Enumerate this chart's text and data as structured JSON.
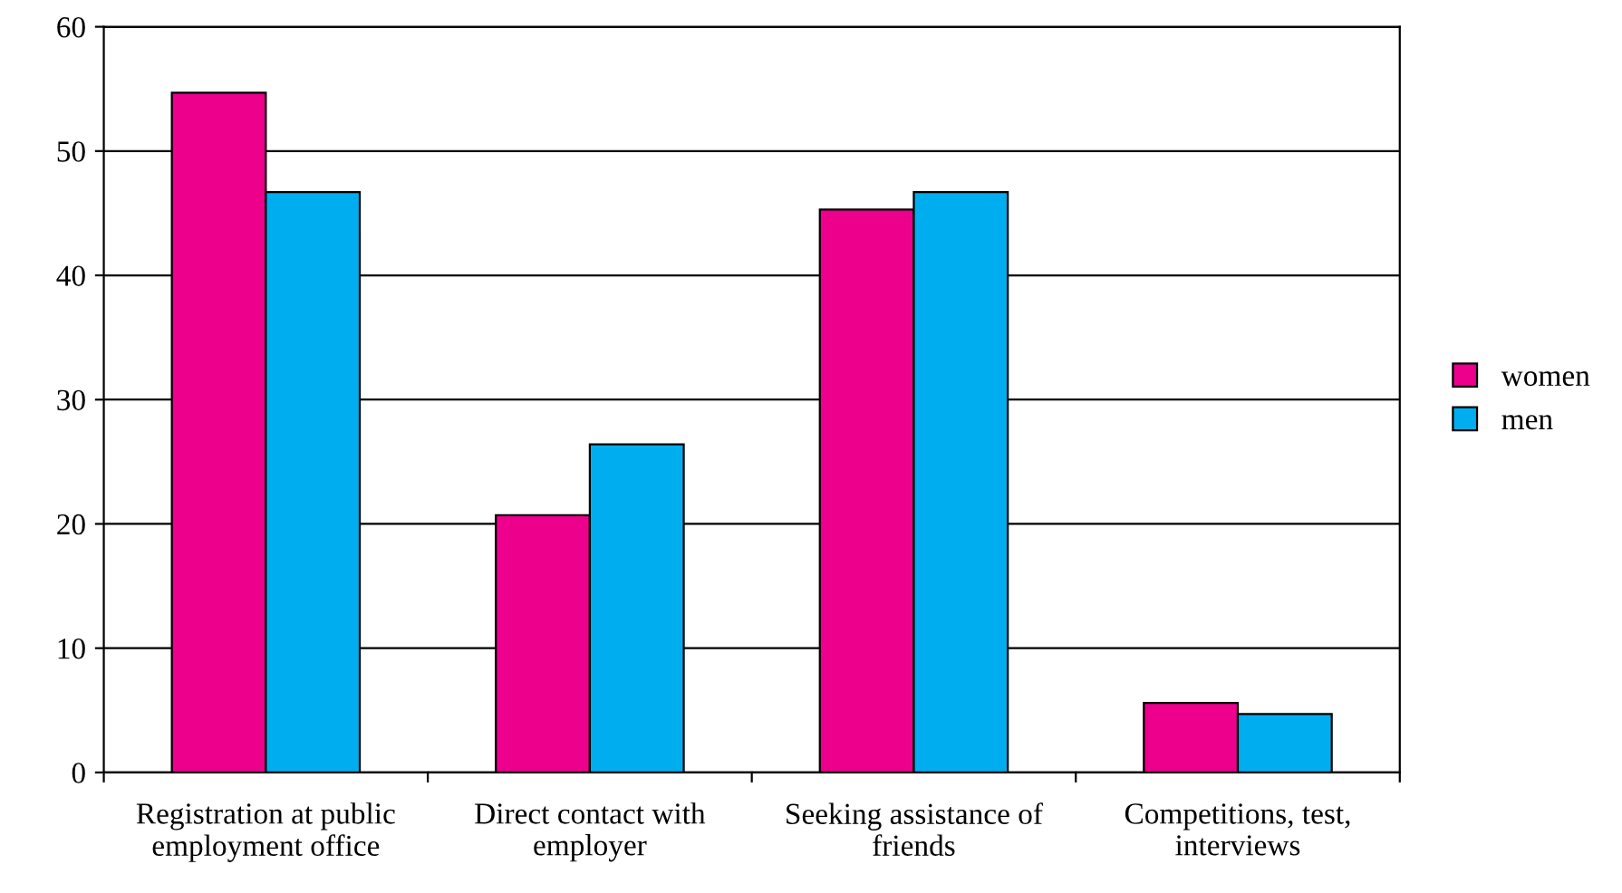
{
  "chart_data": {
    "type": "bar",
    "categories": [
      "Registration at public\nemployment office",
      "Direct contact with\nemployer",
      "Seeking assistance of\nfriends",
      "Competitions, test,\ninterviews"
    ],
    "series": [
      {
        "name": "women",
        "color": "#ec008c",
        "values": [
          54.7,
          20.7,
          45.3,
          5.6
        ]
      },
      {
        "name": "men",
        "color": "#00aeef",
        "values": [
          46.7,
          26.4,
          46.7,
          4.7
        ]
      }
    ],
    "ylim": [
      0,
      60
    ],
    "yticks": [
      0,
      10,
      20,
      30,
      40,
      50,
      60
    ],
    "grid": "y",
    "legend": "right"
  }
}
